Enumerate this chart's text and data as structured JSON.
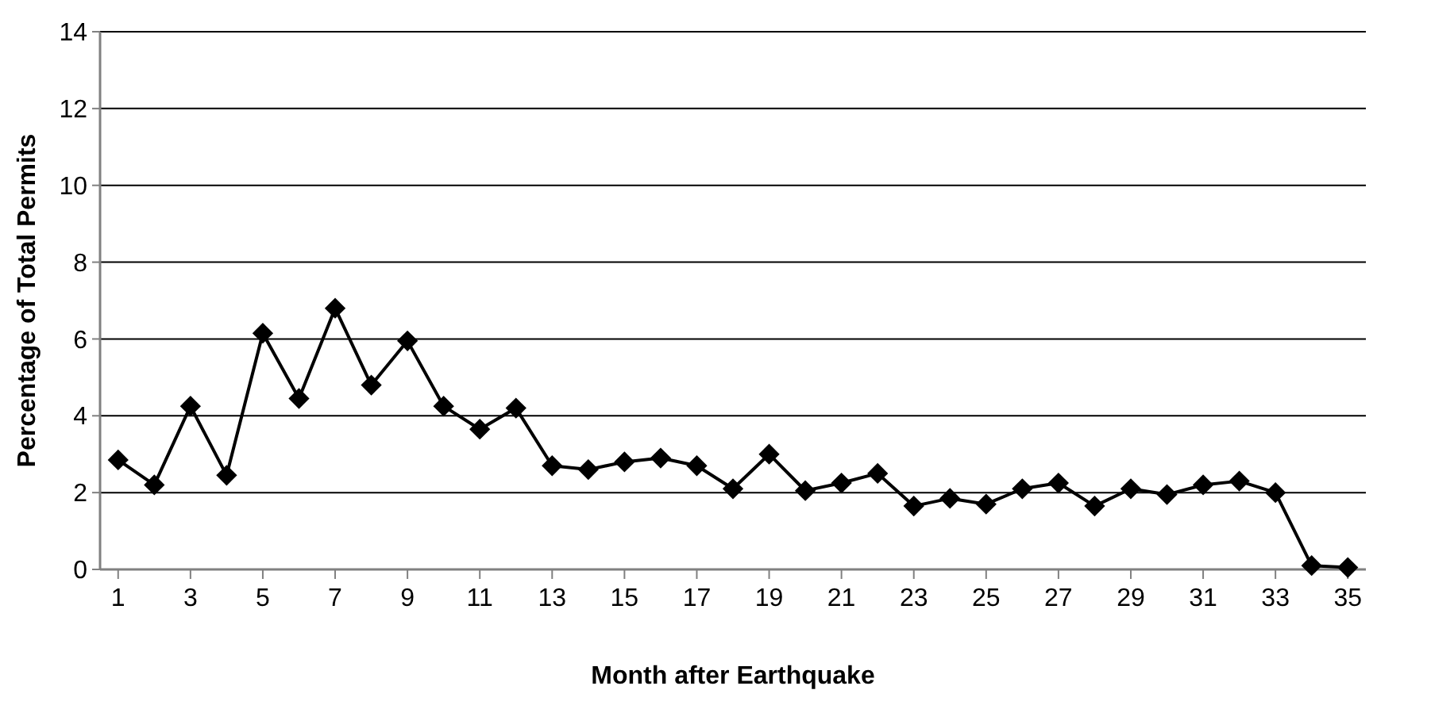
{
  "chart_data": {
    "type": "line",
    "xlabel": "Month after Earthquake",
    "ylabel": "Percentage of Total Permits",
    "x": [
      1,
      2,
      3,
      4,
      5,
      6,
      7,
      8,
      9,
      10,
      11,
      12,
      13,
      14,
      15,
      16,
      17,
      18,
      19,
      20,
      21,
      22,
      23,
      24,
      25,
      26,
      27,
      28,
      29,
      30,
      31,
      32,
      33,
      34,
      35
    ],
    "xlim": [
      0.5,
      35.5
    ],
    "xticks": [
      1,
      3,
      5,
      7,
      9,
      11,
      13,
      15,
      17,
      19,
      21,
      23,
      25,
      27,
      29,
      31,
      33,
      35
    ],
    "series": [
      {
        "color": "#000000",
        "values": [
          2.85,
          2.2,
          4.25,
          2.45,
          6.15,
          4.45,
          6.8,
          4.8,
          5.95,
          4.25,
          3.65,
          4.2,
          2.7,
          2.6,
          2.8,
          2.9,
          2.7,
          2.1,
          3.0,
          2.05,
          2.25,
          2.5,
          1.65,
          1.85,
          1.7,
          2.1,
          2.25,
          1.65,
          2.1,
          1.95,
          2.2,
          2.3,
          2.0,
          0.1,
          0.05
        ]
      }
    ],
    "ylim": [
      0,
      14
    ],
    "yticks": [
      0,
      2,
      4,
      6,
      8,
      10,
      12,
      14
    ],
    "grid": "y",
    "marker": "diamond",
    "line_style": "solid"
  }
}
